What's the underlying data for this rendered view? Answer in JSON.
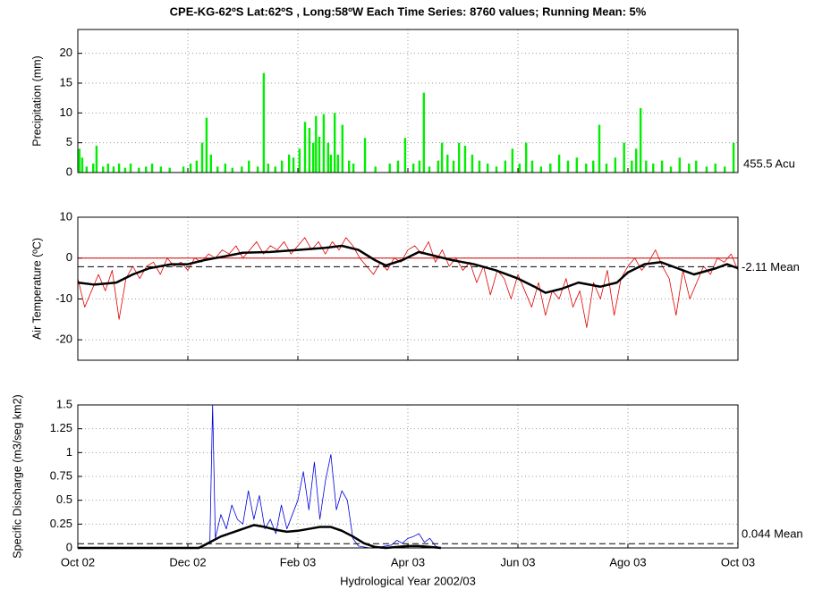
{
  "chart_data": [
    {
      "type": "bar",
      "title": "CPE-KG-62ºS  Lat:62ºS , Long:58ºW     Each Time Series: 8760 values;  Running Mean: 5%",
      "ylabel": "Precipitation (mm)",
      "color": "#00ee00",
      "grid": true,
      "ylim": [
        0,
        24
      ],
      "yticks": [
        0,
        5,
        10,
        15,
        20
      ],
      "annotation": "455.5 Acu",
      "x": [
        0.03,
        0.08,
        0.16,
        0.28,
        0.34,
        0.46,
        0.55,
        0.65,
        0.75,
        0.86,
        0.96,
        1.11,
        1.24,
        1.35,
        1.51,
        1.67,
        1.92,
        2.05,
        2.16,
        2.26,
        2.34,
        2.42,
        2.54,
        2.68,
        2.81,
        2.98,
        3.11,
        3.27,
        3.38,
        3.46,
        3.59,
        3.71,
        3.84,
        3.92,
        4.03,
        4.13,
        4.21,
        4.28,
        4.33,
        4.39,
        4.47,
        4.55,
        4.6,
        4.67,
        4.73,
        4.81,
        4.93,
        5.01,
        5.22,
        5.41,
        5.67,
        5.82,
        5.95,
        6.1,
        6.21,
        6.29,
        6.39,
        6.55,
        6.62,
        6.72,
        6.83,
        6.93,
        7.04,
        7.17,
        7.3,
        7.45,
        7.61,
        7.77,
        7.9,
        8.03,
        8.15,
        8.26,
        8.42,
        8.59,
        8.75,
        8.91,
        9.07,
        9.24,
        9.37,
        9.48,
        9.61,
        9.77,
        9.93,
        10.07,
        10.15,
        10.23,
        10.33,
        10.46,
        10.62,
        10.78,
        10.94,
        11.11,
        11.24,
        11.43,
        11.59,
        11.76,
        11.92
      ],
      "values": [
        4,
        2.5,
        1,
        1.5,
        4.5,
        1,
        1.5,
        1,
        1.5,
        0.8,
        1.5,
        0.8,
        1,
        1.5,
        1,
        0.8,
        1,
        1.5,
        2,
        5,
        9.2,
        3,
        1,
        1.5,
        0.8,
        1,
        2,
        1,
        16.7,
        1.5,
        1,
        2,
        3,
        2.5,
        4,
        8.5,
        7.5,
        5,
        9.5,
        6,
        9.8,
        5,
        3,
        10,
        3,
        8,
        2,
        1.5,
        5.8,
        1,
        1.5,
        2,
        5.8,
        1.5,
        2,
        13.4,
        1,
        2,
        5,
        3,
        2,
        5,
        4.5,
        3,
        2,
        1.5,
        1,
        2,
        4,
        1.5,
        5,
        2,
        1,
        1.5,
        3,
        2,
        2.5,
        1.5,
        2,
        8,
        1.5,
        2.5,
        5,
        2,
        4,
        10.8,
        2,
        1.5,
        2,
        1,
        2.5,
        1.5,
        2,
        1,
        1.5,
        1,
        5
      ]
    },
    {
      "type": "line",
      "ylabel": "Air Temperature  (ºC)",
      "grid": true,
      "zero_line_color": "#cc0000",
      "ylim": [
        -25,
        10
      ],
      "yticks": [
        -20,
        -10,
        0,
        10
      ],
      "reference": {
        "value": -2.11,
        "label": "-2.11 Mean"
      },
      "series": [
        {
          "color": "#e00000",
          "width": 0.8,
          "x": [
            0,
            0.125,
            0.25,
            0.375,
            0.5,
            0.625,
            0.75,
            0.875,
            1,
            1.125,
            1.25,
            1.375,
            1.5,
            1.625,
            1.75,
            1.875,
            2,
            2.125,
            2.25,
            2.375,
            2.5,
            2.625,
            2.75,
            2.875,
            3,
            3.125,
            3.25,
            3.375,
            3.5,
            3.625,
            3.75,
            3.875,
            4,
            4.125,
            4.25,
            4.375,
            4.5,
            4.625,
            4.75,
            4.875,
            5,
            5.125,
            5.25,
            5.375,
            5.5,
            5.625,
            5.75,
            5.875,
            6,
            6.125,
            6.25,
            6.375,
            6.5,
            6.625,
            6.75,
            6.875,
            7,
            7.125,
            7.25,
            7.375,
            7.5,
            7.625,
            7.75,
            7.875,
            8,
            8.125,
            8.25,
            8.375,
            8.5,
            8.625,
            8.75,
            8.875,
            9,
            9.125,
            9.25,
            9.375,
            9.5,
            9.625,
            9.75,
            9.875,
            10,
            10.125,
            10.25,
            10.375,
            10.5,
            10.625,
            10.75,
            10.875,
            11,
            11.125,
            11.25,
            11.375,
            11.5,
            11.625,
            11.75,
            11.875,
            12
          ],
          "values": [
            -5,
            -12,
            -8,
            -4,
            -8,
            -3,
            -15,
            -5,
            -2,
            -5,
            -2,
            -1,
            -4,
            0,
            -2,
            -1,
            -3,
            0,
            -1,
            1,
            0,
            2,
            1,
            3,
            0,
            2,
            4,
            1,
            3,
            2,
            4,
            1,
            3,
            5,
            2,
            4,
            1,
            4,
            2,
            5,
            3,
            0,
            -2,
            -4,
            -1,
            -3,
            0,
            -1,
            2,
            3,
            1,
            4,
            -1,
            2,
            -2,
            0,
            -3,
            -1,
            -6,
            -2,
            -9,
            -3,
            -5,
            -10,
            -4,
            -8,
            -12,
            -6,
            -14,
            -8,
            -10,
            -5,
            -12,
            -8,
            -17,
            -6,
            -10,
            -3,
            -14,
            -5,
            -2,
            0,
            -3,
            -1,
            2,
            -2,
            -5,
            -14,
            -3,
            -10,
            -6,
            -2,
            -4,
            0,
            -1,
            1,
            -3
          ]
        },
        {
          "color": "#000000",
          "width": 2.5,
          "x": [
            0,
            0.3,
            0.7,
            1,
            1.3,
            1.7,
            2,
            2.3,
            2.7,
            3,
            3.5,
            4,
            4.5,
            4.8,
            5.1,
            5.4,
            5.6,
            5.9,
            6.2,
            6.5,
            6.8,
            7.2,
            7.6,
            8,
            8.3,
            8.5,
            8.8,
            9.1,
            9.5,
            9.8,
            10,
            10.3,
            10.6,
            10.9,
            11.2,
            11.6,
            11.8,
            12
          ],
          "values": [
            -6,
            -6.5,
            -6,
            -4,
            -2.5,
            -1.5,
            -1.5,
            -0.5,
            0.5,
            1.3,
            1.5,
            2,
            2.5,
            3,
            2,
            -0.5,
            -1.8,
            -0.5,
            1.5,
            0.5,
            -0.5,
            -1.5,
            -3,
            -5,
            -7,
            -8.5,
            -7.5,
            -6,
            -7,
            -6,
            -3.5,
            -1.5,
            -1,
            -2.5,
            -4,
            -2.5,
            -1.5,
            -2.5
          ]
        }
      ]
    },
    {
      "type": "line",
      "ylabel": "Specific Discharge (m3/seg km2)",
      "grid": true,
      "ylim": [
        0,
        1.5
      ],
      "yticks": [
        0,
        0.25,
        0.5,
        0.75,
        1,
        1.25,
        1.5
      ],
      "reference": {
        "value": 0.044,
        "label": "0.044 Mean"
      },
      "xlabel": "Hydrological Year  2002/03",
      "xlim": [
        0,
        12
      ],
      "xticks": [
        {
          "value": 0,
          "label": "Oct 02"
        },
        {
          "value": 2,
          "label": "Dec 02"
        },
        {
          "value": 4,
          "label": "Feb 03"
        },
        {
          "value": 6,
          "label": "Apr 03"
        },
        {
          "value": 8,
          "label": "Jun 03"
        },
        {
          "value": 10,
          "label": "Ago 03"
        },
        {
          "value": 12,
          "label": "Oct 03"
        }
      ],
      "series": [
        {
          "color": "#0000dd",
          "width": 0.8,
          "x": [
            0,
            2.2,
            2.3,
            2.4,
            2.45,
            2.5,
            2.6,
            2.7,
            2.8,
            2.9,
            3.0,
            3.1,
            3.2,
            3.3,
            3.4,
            3.5,
            3.6,
            3.7,
            3.8,
            3.9,
            4.0,
            4.1,
            4.2,
            4.3,
            4.4,
            4.5,
            4.6,
            4.7,
            4.8,
            4.9,
            5.0,
            5.1,
            5.3,
            5.5,
            5.7,
            5.8,
            5.9,
            6.0,
            6.1,
            6.2,
            6.3,
            6.4,
            6.5,
            6.6
          ],
          "values": [
            0,
            0,
            0.02,
            0.05,
            1.5,
            0.1,
            0.35,
            0.2,
            0.45,
            0.3,
            0.25,
            0.6,
            0.3,
            0.55,
            0.2,
            0.3,
            0.15,
            0.45,
            0.2,
            0.35,
            0.5,
            0.8,
            0.4,
            0.9,
            0.3,
            0.7,
            0.98,
            0.4,
            0.6,
            0.5,
            0.1,
            0.02,
            0,
            0.01,
            0.03,
            0.08,
            0.05,
            0.1,
            0.12,
            0.15,
            0.06,
            0.1,
            0.02,
            0
          ]
        },
        {
          "color": "#000000",
          "width": 2.5,
          "x": [
            0,
            2.2,
            2.4,
            2.6,
            2.8,
            3.0,
            3.2,
            3.4,
            3.6,
            3.8,
            4.0,
            4.2,
            4.4,
            4.6,
            4.8,
            5.0,
            5.2,
            5.4,
            5.6,
            5.8,
            6.0,
            6.2,
            6.4,
            6.6
          ],
          "values": [
            0,
            0,
            0.06,
            0.12,
            0.16,
            0.2,
            0.24,
            0.22,
            0.19,
            0.17,
            0.18,
            0.2,
            0.22,
            0.22,
            0.18,
            0.12,
            0.05,
            0.01,
            0,
            0.01,
            0.02,
            0.02,
            0.01,
            0
          ]
        }
      ]
    }
  ]
}
